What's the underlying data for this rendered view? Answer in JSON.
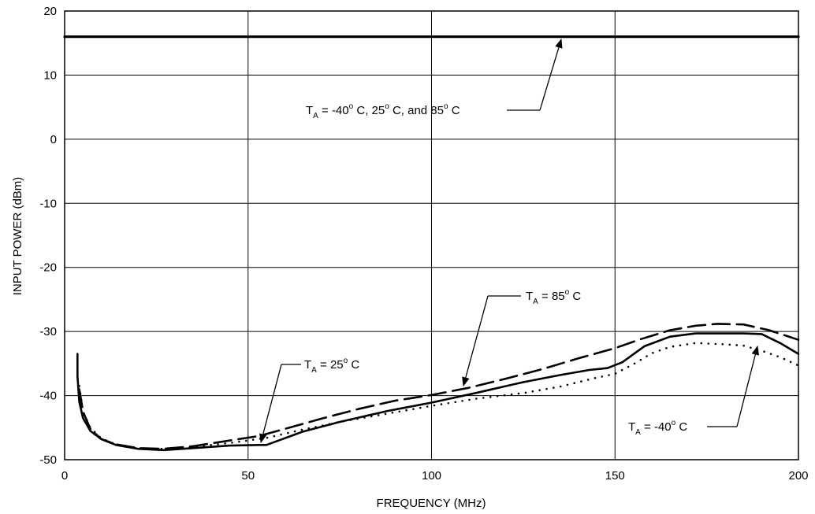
{
  "chart_data": {
    "type": "line",
    "xlabel": "FREQUENCY (MHz)",
    "ylabel": "INPUT POWER (dBm)",
    "xlim": [
      0,
      200
    ],
    "ylim": [
      -50,
      20
    ],
    "x_ticks": [
      0,
      50,
      100,
      150,
      200
    ],
    "y_ticks": [
      20,
      10,
      0,
      -10,
      -20,
      -30,
      -40,
      -50
    ],
    "grid": true,
    "series": [
      {
        "name": "TA = -40° C, 25° C, and 85° C",
        "style": "solid-thick",
        "x": [
          0,
          200
        ],
        "y": [
          16,
          16
        ]
      },
      {
        "name": "TA = 25° C",
        "style": "solid",
        "x": [
          3.5,
          3.5,
          4,
          5,
          7,
          10,
          14,
          20,
          27,
          35,
          45,
          53,
          55,
          65,
          75,
          88,
          100,
          112,
          125,
          135,
          143,
          148,
          152,
          158,
          165,
          172,
          180,
          185,
          190,
          195,
          200
        ],
        "y": [
          -33.5,
          -37,
          -41,
          -43.5,
          -45.5,
          -46.8,
          -47.7,
          -48.3,
          -48.5,
          -48.2,
          -47.8,
          -47.7,
          -47.7,
          -45.6,
          -44.1,
          -42.4,
          -41.1,
          -39.6,
          -37.9,
          -36.8,
          -36,
          -35.7,
          -34.8,
          -32.3,
          -30.8,
          -30.3,
          -30.3,
          -30.3,
          -30.4,
          -31.8,
          -33.5
        ]
      },
      {
        "name": "TA = 85° C",
        "style": "dashed",
        "x": [
          4,
          5,
          7,
          10,
          14,
          20,
          27,
          35,
          45,
          53,
          60,
          70,
          80,
          90,
          100,
          110,
          120,
          130,
          140,
          150,
          157,
          165,
          172,
          178,
          185,
          192,
          200
        ],
        "y": [
          -39,
          -42.5,
          -45.2,
          -46.8,
          -47.6,
          -48.2,
          -48.3,
          -47.9,
          -47,
          -46.3,
          -45.2,
          -43.6,
          -42.1,
          -40.8,
          -39.9,
          -38.8,
          -37.4,
          -35.9,
          -34.2,
          -32.6,
          -31.2,
          -29.8,
          -29.1,
          -28.8,
          -28.9,
          -29.8,
          -31.3
        ]
      },
      {
        "name": "TA = -40° C",
        "style": "dotted",
        "x": [
          4,
          5,
          7,
          10,
          14,
          20,
          27,
          35,
          45,
          55,
          65,
          75,
          88,
          100,
          112,
          125,
          135,
          145,
          150,
          155,
          160,
          165,
          172,
          180,
          185,
          190,
          195,
          200
        ],
        "y": [
          -38.5,
          -42.5,
          -45,
          -46.7,
          -47.6,
          -48.2,
          -48.3,
          -48,
          -47.4,
          -46.6,
          -45.3,
          -44.1,
          -42.8,
          -41.6,
          -40.5,
          -39.6,
          -38.6,
          -37.2,
          -36.6,
          -35.1,
          -33.4,
          -32.4,
          -31.8,
          -32,
          -32.2,
          -33,
          -34,
          -35.3
        ]
      }
    ],
    "annotations": [
      {
        "base": "T",
        "sub": "A",
        "rest": " = -40",
        "sup": "o",
        "tail": " C,  25",
        "sup2": "o",
        "tail2": " C, and 85",
        "sup3": "o",
        "tail3": " C"
      },
      {
        "base": "T",
        "sub": "A",
        "rest": " = 85",
        "sup": "o",
        "tail": " C"
      },
      {
        "base": "T",
        "sub": "A",
        "rest": " = 25",
        "sup": "o",
        "tail": " C"
      },
      {
        "base": "T",
        "sub": "A",
        "rest": " = -40",
        "sup": "o",
        "tail": " C"
      }
    ]
  }
}
